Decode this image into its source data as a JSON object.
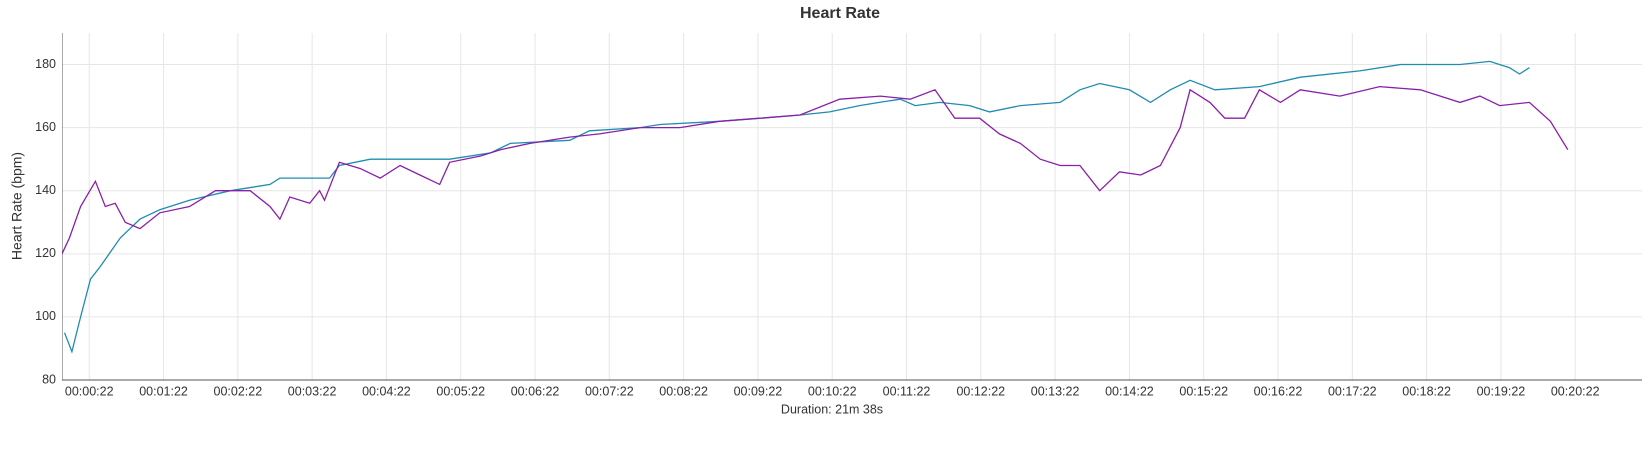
{
  "chart_data": {
    "type": "line",
    "title": "Heart Rate",
    "x_label": "Duration: 21m 38s",
    "y_label": "Heart Rate (bpm)",
    "xlim": [
      0,
      1298
    ],
    "ylim": [
      80,
      190
    ],
    "yticks": [
      80,
      100,
      120,
      140,
      160,
      180
    ],
    "xticks": [
      {
        "value": 22,
        "label": "00:00:22"
      },
      {
        "value": 82,
        "label": "00:01:22"
      },
      {
        "value": 142,
        "label": "00:02:22"
      },
      {
        "value": 202,
        "label": "00:03:22"
      },
      {
        "value": 262,
        "label": "00:04:22"
      },
      {
        "value": 322,
        "label": "00:05:22"
      },
      {
        "value": 382,
        "label": "00:06:22"
      },
      {
        "value": 442,
        "label": "00:07:22"
      },
      {
        "value": 502,
        "label": "00:08:22"
      },
      {
        "value": 562,
        "label": "00:09:22"
      },
      {
        "value": 622,
        "label": "00:10:22"
      },
      {
        "value": 682,
        "label": "00:11:22"
      },
      {
        "value": 742,
        "label": "00:12:22"
      },
      {
        "value": 802,
        "label": "00:13:22"
      },
      {
        "value": 862,
        "label": "00:14:22"
      },
      {
        "value": 922,
        "label": "00:15:22"
      },
      {
        "value": 982,
        "label": "00:16:22"
      },
      {
        "value": 1042,
        "label": "00:17:22"
      },
      {
        "value": 1102,
        "label": "00:18:22"
      },
      {
        "value": 1162,
        "label": "00:19:22"
      },
      {
        "value": 1222,
        "label": "00:20:22"
      }
    ],
    "grid": true,
    "series": [
      {
        "color": "#1f8cb0",
        "x": [
          2,
          8,
          15,
          23,
          31,
          47,
          63,
          79,
          103,
          136,
          168,
          176,
          216,
          224,
          249,
          313,
          346,
          362,
          410,
          426,
          467,
          483,
          531,
          564,
          596,
          620,
          644,
          660,
          677,
          689,
          709,
          733,
          749,
          774,
          806,
          822,
          838,
          862,
          879,
          895,
          911,
          931,
          967,
          1000,
          1048,
          1081,
          1129,
          1153,
          1169,
          1177,
          1185
        ],
        "values": [
          95,
          89,
          100,
          112,
          116,
          125,
          131,
          134,
          137,
          140,
          142,
          144,
          144,
          148,
          150,
          150,
          152,
          155,
          156,
          159,
          160,
          161,
          162,
          163,
          164,
          165,
          167,
          168,
          169,
          167,
          168,
          167,
          165,
          167,
          168,
          172,
          174,
          172,
          168,
          172,
          175,
          172,
          173,
          176,
          178,
          180,
          180,
          181,
          179,
          177,
          179
        ]
      },
      {
        "color": "#8a1fa8",
        "x": [
          0,
          6,
          15,
          27,
          35,
          43,
          51,
          63,
          79,
          103,
          124,
          152,
          168,
          176,
          184,
          200,
          208,
          212,
          224,
          241,
          257,
          273,
          289,
          305,
          313,
          338,
          354,
          378,
          410,
          434,
          467,
          499,
          531,
          564,
          596,
          628,
          661,
          685,
          705,
          721,
          741,
          757,
          774,
          790,
          806,
          822,
          838,
          854,
          871,
          887,
          903,
          911,
          919,
          927,
          939,
          955,
          967,
          984,
          1000,
          1032,
          1064,
          1097,
          1129,
          1145,
          1161,
          1185,
          1202,
          1216
        ],
        "values": [
          120,
          125,
          135,
          143,
          135,
          136,
          130,
          128,
          133,
          135,
          140,
          140,
          135,
          131,
          138,
          136,
          140,
          137,
          149,
          147,
          144,
          148,
          145,
          142,
          149,
          151,
          153,
          155,
          157,
          158,
          160,
          160,
          162,
          163,
          164,
          169,
          170,
          169,
          172,
          163,
          163,
          158,
          155,
          150,
          148,
          148,
          140,
          146,
          145,
          148,
          160,
          172,
          170,
          168,
          163,
          163,
          172,
          168,
          172,
          170,
          173,
          172,
          168,
          170,
          167,
          168,
          162,
          153
        ]
      }
    ]
  }
}
